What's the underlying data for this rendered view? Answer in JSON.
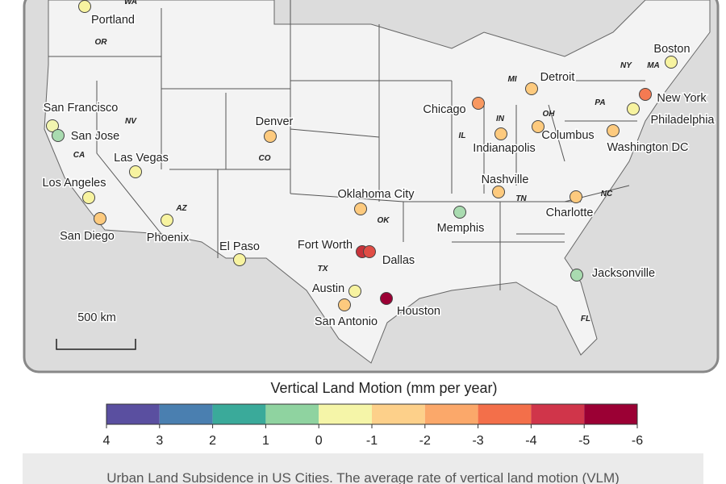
{
  "map": {
    "states": [
      "WA",
      "OR",
      "NV",
      "CA",
      "AZ",
      "CO",
      "TX",
      "OK",
      "IL",
      "IN",
      "OH",
      "MI",
      "NY",
      "MA",
      "PA",
      "TN",
      "NC",
      "FL"
    ],
    "cities": [
      {
        "label": "Portland",
        "color": "#f7f3a0"
      },
      {
        "label": "Boston",
        "color": "#f7f3a0"
      },
      {
        "label": "Detroit",
        "color": "#fdca7e"
      },
      {
        "label": "Chicago",
        "color": "#f89860"
      },
      {
        "label": "New York",
        "color": "#f47a52"
      },
      {
        "label": "Philadelphia",
        "color": "#f7f3a0"
      },
      {
        "label": "San Francisco",
        "color": "#f2f5b0"
      },
      {
        "label": "San Jose",
        "color": "#a9dbb0"
      },
      {
        "label": "Denver",
        "color": "#fdca7e"
      },
      {
        "label": "Indianapolis",
        "color": "#fdca7e"
      },
      {
        "label": "Columbus",
        "color": "#fdca7e"
      },
      {
        "label": "Washington DC",
        "color": "#fdca7e"
      },
      {
        "label": "Las Vegas",
        "color": "#f7f3a0"
      },
      {
        "label": "Los Angeles",
        "color": "#f7f3a0"
      },
      {
        "label": "Nashville",
        "color": "#fdca7e"
      },
      {
        "label": "Oklahoma City",
        "color": "#fdca7e"
      },
      {
        "label": "Charlotte",
        "color": "#fdca7e"
      },
      {
        "label": "Memphis",
        "color": "#a9dbb0"
      },
      {
        "label": "San Diego",
        "color": "#fdca7e"
      },
      {
        "label": "Phoenix",
        "color": "#f7f3a0"
      },
      {
        "label": "Fort Worth",
        "color": "#c8323a"
      },
      {
        "label": "Dallas",
        "color": "#e04d45"
      },
      {
        "label": "El Paso",
        "color": "#f7f3a0"
      },
      {
        "label": "Jacksonville",
        "color": "#a9dbb0"
      },
      {
        "label": "Austin",
        "color": "#f7f3a0"
      },
      {
        "label": "Houston",
        "color": "#9b0034"
      },
      {
        "label": "San Antonio",
        "color": "#fdca7e"
      }
    ],
    "scale_bar": "500 km"
  },
  "colorbar": {
    "title": "Vertical Land Motion (mm per year)",
    "lim": [
      4,
      -6
    ],
    "ticks": [
      4,
      3,
      2,
      1,
      0,
      -1,
      -2,
      -3,
      -4,
      -5,
      -6
    ],
    "colors": [
      "#5a4fa0",
      "#4a7fb0",
      "#3aaa9a",
      "#8fd3a0",
      "#f5f5a8",
      "#fdd08a",
      "#fba86a",
      "#f36f4a",
      "#d0354a",
      "#9b0034"
    ]
  },
  "caption": "Urban Land Subsidence in US Cities. The average rate of vertical land motion (VLM)"
}
